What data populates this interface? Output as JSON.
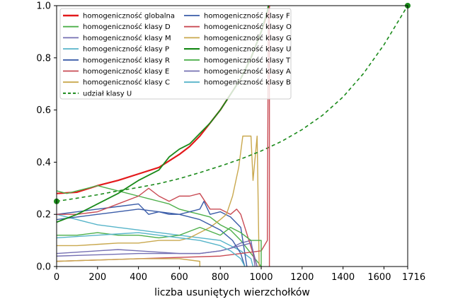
{
  "chart_data": {
    "type": "line",
    "title": "",
    "xlabel": "liczba usuniętych wierzchołków",
    "ylabel": "",
    "xlim": [
      0,
      1716
    ],
    "ylim": [
      0,
      1.0
    ],
    "xticks": [
      0,
      200,
      400,
      600,
      800,
      1000,
      1200,
      1400,
      1600,
      1716
    ],
    "xtick_labels": [
      "0",
      "200",
      "400",
      "600",
      "800",
      "1000",
      "1200",
      "1400",
      "1600",
      "1716"
    ],
    "yticks": [
      0.0,
      0.2,
      0.4,
      0.6,
      0.8,
      1.0
    ],
    "ytick_labels": [
      "0.0",
      "0.2",
      "0.4",
      "0.6",
      "0.8",
      "1.0"
    ],
    "grid": false,
    "legend": {
      "placement": "top-left",
      "columns": 2
    },
    "series": [
      {
        "name": "homogeniczność globalna",
        "color": "#e31a1c",
        "width": 2.2,
        "dash": "",
        "points": [
          [
            0,
            0.28
          ],
          [
            100,
            0.285
          ],
          [
            200,
            0.31
          ],
          [
            300,
            0.33
          ],
          [
            400,
            0.355
          ],
          [
            500,
            0.38
          ],
          [
            600,
            0.43
          ],
          [
            650,
            0.46
          ],
          [
            700,
            0.5
          ],
          [
            750,
            0.55
          ],
          [
            800,
            0.6
          ],
          [
            850,
            0.66
          ],
          [
            900,
            0.72
          ],
          [
            950,
            0.8
          ],
          [
            1000,
            0.9
          ],
          [
            1030,
            0.97
          ],
          [
            1040,
            1.0
          ]
        ]
      },
      {
        "name": "homogeniczność klasy D",
        "color": "#4daf4a",
        "width": 1.4,
        "dash": "",
        "points": [
          [
            0,
            0.29
          ],
          [
            50,
            0.28
          ],
          [
            100,
            0.29
          ],
          [
            150,
            0.3
          ],
          [
            200,
            0.31
          ],
          [
            250,
            0.3
          ],
          [
            300,
            0.29
          ],
          [
            350,
            0.28
          ],
          [
            400,
            0.27
          ],
          [
            450,
            0.26
          ],
          [
            500,
            0.25
          ],
          [
            550,
            0.24
          ],
          [
            600,
            0.22
          ],
          [
            650,
            0.21
          ],
          [
            700,
            0.2
          ],
          [
            750,
            0.19
          ],
          [
            800,
            0.16
          ],
          [
            850,
            0.14
          ],
          [
            900,
            0.1
          ],
          [
            950,
            0.05
          ],
          [
            1000,
            0.0
          ]
        ]
      },
      {
        "name": "homogeniczność klasy M",
        "color": "#7570b3",
        "width": 1.4,
        "dash": "",
        "points": [
          [
            0,
            0.05
          ],
          [
            100,
            0.055
          ],
          [
            200,
            0.06
          ],
          [
            300,
            0.065
          ],
          [
            400,
            0.06
          ],
          [
            500,
            0.055
          ],
          [
            600,
            0.05
          ],
          [
            700,
            0.05
          ],
          [
            800,
            0.06
          ],
          [
            850,
            0.07
          ],
          [
            900,
            0.09
          ],
          [
            950,
            0.1
          ],
          [
            970,
            0.0
          ]
        ]
      },
      {
        "name": "homogeniczność klasy P",
        "color": "#56b4c9",
        "width": 1.4,
        "dash": "",
        "points": [
          [
            0,
            0.2
          ],
          [
            50,
            0.19
          ],
          [
            100,
            0.18
          ],
          [
            150,
            0.17
          ],
          [
            200,
            0.16
          ],
          [
            300,
            0.15
          ],
          [
            400,
            0.14
          ],
          [
            500,
            0.13
          ],
          [
            600,
            0.12
          ],
          [
            700,
            0.11
          ],
          [
            800,
            0.1
          ],
          [
            850,
            0.08
          ],
          [
            900,
            0.06
          ],
          [
            950,
            0.03
          ],
          [
            960,
            0.0
          ]
        ]
      },
      {
        "name": "homogeniczność klasy R",
        "color": "#3a5ca8",
        "width": 1.4,
        "dash": "",
        "points": [
          [
            0,
            0.2
          ],
          [
            100,
            0.21
          ],
          [
            200,
            0.22
          ],
          [
            300,
            0.23
          ],
          [
            400,
            0.24
          ],
          [
            450,
            0.2
          ],
          [
            500,
            0.21
          ],
          [
            550,
            0.2
          ],
          [
            600,
            0.2
          ],
          [
            650,
            0.21
          ],
          [
            700,
            0.22
          ],
          [
            720,
            0.25
          ],
          [
            750,
            0.2
          ],
          [
            800,
            0.21
          ],
          [
            850,
            0.19
          ],
          [
            900,
            0.15
          ],
          [
            930,
            0.0
          ]
        ]
      },
      {
        "name": "homogeniczność klasy E",
        "color": "#c94b54",
        "width": 1.4,
        "dash": "",
        "points": [
          [
            0,
            0.2
          ],
          [
            100,
            0.2
          ],
          [
            200,
            0.21
          ],
          [
            300,
            0.24
          ],
          [
            400,
            0.27
          ],
          [
            450,
            0.3
          ],
          [
            500,
            0.27
          ],
          [
            550,
            0.25
          ],
          [
            600,
            0.27
          ],
          [
            650,
            0.27
          ],
          [
            700,
            0.28
          ],
          [
            750,
            0.22
          ],
          [
            800,
            0.22
          ],
          [
            850,
            0.2
          ],
          [
            880,
            0.22
          ],
          [
            900,
            0.2
          ],
          [
            940,
            0.1
          ],
          [
            980,
            0.0
          ]
        ]
      },
      {
        "name": "homogeniczność klasy C",
        "color": "#c9a84e",
        "width": 1.4,
        "dash": "",
        "points": [
          [
            0,
            0.08
          ],
          [
            100,
            0.08
          ],
          [
            200,
            0.085
          ],
          [
            300,
            0.09
          ],
          [
            400,
            0.09
          ],
          [
            500,
            0.1
          ],
          [
            600,
            0.1
          ],
          [
            650,
            0.11
          ],
          [
            700,
            0.13
          ],
          [
            750,
            0.15
          ],
          [
            800,
            0.18
          ],
          [
            830,
            0.2
          ],
          [
            860,
            0.27
          ],
          [
            890,
            0.38
          ],
          [
            910,
            0.5
          ],
          [
            950,
            0.5
          ],
          [
            960,
            0.33
          ],
          [
            980,
            0.5
          ],
          [
            990,
            0.0
          ]
        ]
      },
      {
        "name": "udział klasy U",
        "color": "#1a8a1a",
        "width": 1.6,
        "dash": "5,4",
        "points": [
          [
            0,
            0.25
          ],
          [
            100,
            0.262
          ],
          [
            200,
            0.275
          ],
          [
            300,
            0.29
          ],
          [
            400,
            0.303
          ],
          [
            500,
            0.318
          ],
          [
            600,
            0.337
          ],
          [
            700,
            0.36
          ],
          [
            800,
            0.385
          ],
          [
            900,
            0.412
          ],
          [
            1000,
            0.443
          ],
          [
            1100,
            0.48
          ],
          [
            1200,
            0.525
          ],
          [
            1300,
            0.58
          ],
          [
            1400,
            0.65
          ],
          [
            1500,
            0.74
          ],
          [
            1600,
            0.85
          ],
          [
            1716,
            1.0
          ]
        ]
      },
      {
        "name": "homogeniczność klasy F",
        "color": "#3a5ca8",
        "width": 1.4,
        "dash": "",
        "points": [
          [
            0,
            0.18
          ],
          [
            100,
            0.19
          ],
          [
            200,
            0.2
          ],
          [
            300,
            0.21
          ],
          [
            400,
            0.22
          ],
          [
            500,
            0.21
          ],
          [
            600,
            0.2
          ],
          [
            700,
            0.18
          ],
          [
            800,
            0.14
          ],
          [
            860,
            0.1
          ],
          [
            900,
            0.05
          ],
          [
            920,
            0.0
          ]
        ]
      },
      {
        "name": "homogeniczność klasy O",
        "color": "#c94b54",
        "width": 1.4,
        "dash": "",
        "points": [
          [
            0,
            0.02
          ],
          [
            200,
            0.025
          ],
          [
            400,
            0.03
          ],
          [
            600,
            0.035
          ],
          [
            800,
            0.04
          ],
          [
            900,
            0.05
          ],
          [
            1000,
            0.06
          ],
          [
            1030,
            0.1
          ],
          [
            1035,
            1.0
          ],
          [
            1040,
            1.0
          ],
          [
            1040,
            0.0
          ]
        ]
      },
      {
        "name": "homogeniczność klasy G",
        "color": "#c9a84e",
        "width": 1.4,
        "dash": "",
        "points": [
          [
            0,
            0.02
          ],
          [
            200,
            0.025
          ],
          [
            400,
            0.03
          ],
          [
            600,
            0.03
          ],
          [
            700,
            0.02
          ],
          [
            700,
            0.0
          ]
        ]
      },
      {
        "name": "homogeniczność klasy U",
        "color": "#1a8a1a",
        "width": 1.8,
        "dash": "",
        "points": [
          [
            0,
            0.17
          ],
          [
            100,
            0.2
          ],
          [
            200,
            0.24
          ],
          [
            300,
            0.28
          ],
          [
            400,
            0.33
          ],
          [
            500,
            0.37
          ],
          [
            550,
            0.42
          ],
          [
            600,
            0.45
          ],
          [
            650,
            0.47
          ],
          [
            700,
            0.51
          ],
          [
            750,
            0.55
          ],
          [
            800,
            0.6
          ],
          [
            850,
            0.66
          ],
          [
            900,
            0.72
          ],
          [
            950,
            0.8
          ],
          [
            1000,
            0.9
          ],
          [
            1030,
            0.98
          ],
          [
            1035,
            1.0
          ]
        ]
      },
      {
        "name": "homogeniczność klasy T",
        "color": "#4daf4a",
        "width": 1.4,
        "dash": "",
        "points": [
          [
            0,
            0.12
          ],
          [
            100,
            0.12
          ],
          [
            200,
            0.13
          ],
          [
            300,
            0.12
          ],
          [
            400,
            0.12
          ],
          [
            500,
            0.11
          ],
          [
            600,
            0.12
          ],
          [
            700,
            0.15
          ],
          [
            800,
            0.12
          ],
          [
            850,
            0.15
          ],
          [
            900,
            0.13
          ],
          [
            950,
            0.1
          ],
          [
            1000,
            0.1
          ],
          [
            1000,
            0.0
          ]
        ]
      },
      {
        "name": "homogeniczność klasy A",
        "color": "#7570b3",
        "width": 1.4,
        "dash": "",
        "points": [
          [
            0,
            0.04
          ],
          [
            200,
            0.045
          ],
          [
            400,
            0.05
          ],
          [
            600,
            0.05
          ],
          [
            700,
            0.05
          ],
          [
            800,
            0.06
          ],
          [
            850,
            0.07
          ],
          [
            900,
            0.08
          ],
          [
            950,
            0.09
          ],
          [
            980,
            0.0
          ]
        ]
      },
      {
        "name": "homogeniczność klasy B",
        "color": "#56b4c9",
        "width": 1.4,
        "dash": "",
        "points": [
          [
            0,
            0.11
          ],
          [
            100,
            0.115
          ],
          [
            200,
            0.12
          ],
          [
            300,
            0.125
          ],
          [
            400,
            0.13
          ],
          [
            500,
            0.12
          ],
          [
            600,
            0.11
          ],
          [
            700,
            0.1
          ],
          [
            800,
            0.08
          ],
          [
            850,
            0.06
          ],
          [
            900,
            0.03
          ],
          [
            920,
            0.0
          ]
        ]
      }
    ],
    "markers": [
      {
        "x": 0,
        "y": 0.25,
        "color": "#1a8a1a"
      },
      {
        "x": 1716,
        "y": 1.0,
        "color": "#1a8a1a"
      }
    ]
  }
}
